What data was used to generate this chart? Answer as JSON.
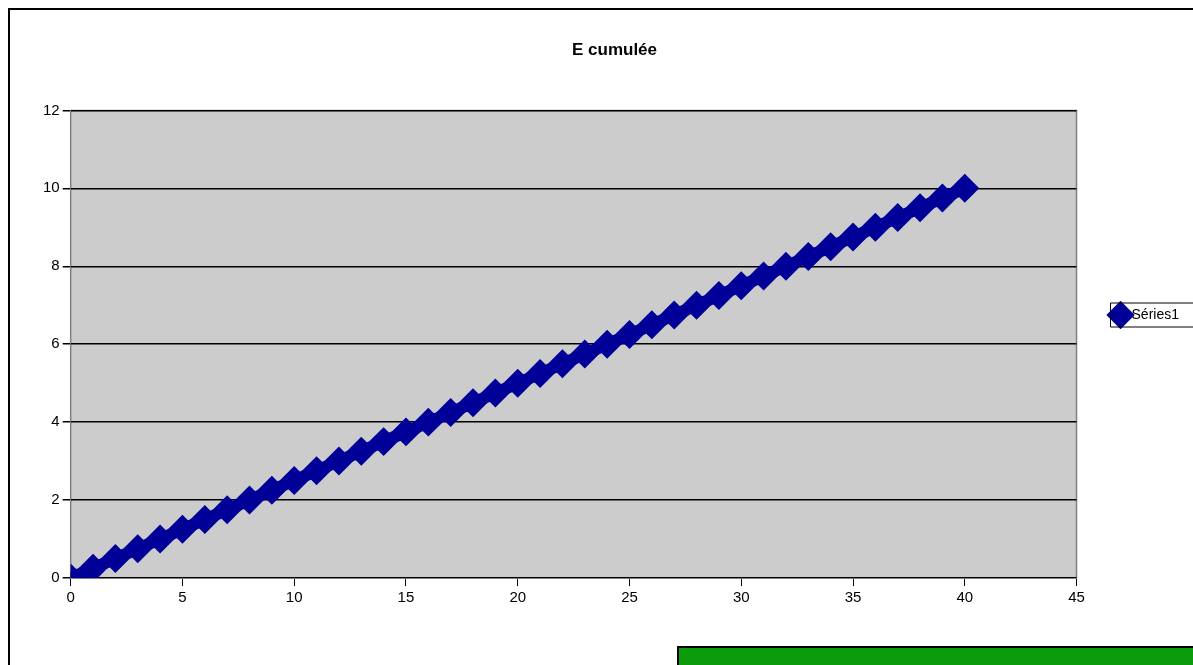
{
  "chart_data": {
    "type": "line",
    "title": "E cumulée",
    "x": [
      0,
      1,
      2,
      3,
      4,
      5,
      6,
      7,
      8,
      9,
      10,
      11,
      12,
      13,
      14,
      15,
      16,
      17,
      18,
      19,
      20,
      21,
      22,
      23,
      24,
      25,
      26,
      27,
      28,
      29,
      30,
      31,
      32,
      33,
      34,
      35,
      36,
      37,
      38,
      39,
      40
    ],
    "series": [
      {
        "name": "Séries1",
        "color": "#000099",
        "values": [
          0,
          0.25,
          0.5,
          0.75,
          1,
          1.25,
          1.5,
          1.75,
          2,
          2.25,
          2.5,
          2.75,
          3,
          3.25,
          3.5,
          3.75,
          4,
          4.25,
          4.5,
          4.75,
          5,
          5.25,
          5.5,
          5.75,
          6,
          6.25,
          6.5,
          6.75,
          7,
          7.25,
          7.5,
          7.75,
          8,
          8.25,
          8.5,
          8.75,
          9,
          9.25,
          9.5,
          9.75,
          10
        ]
      }
    ],
    "xlim": [
      0,
      45
    ],
    "xticks": [
      0,
      5,
      10,
      15,
      20,
      25,
      30,
      35,
      40,
      45
    ],
    "ylim": [
      0,
      12
    ],
    "yticks": [
      0,
      2,
      4,
      6,
      8,
      10,
      12
    ],
    "grid": "y",
    "legend": "right",
    "marker": "diamond",
    "line_style": "solid"
  }
}
